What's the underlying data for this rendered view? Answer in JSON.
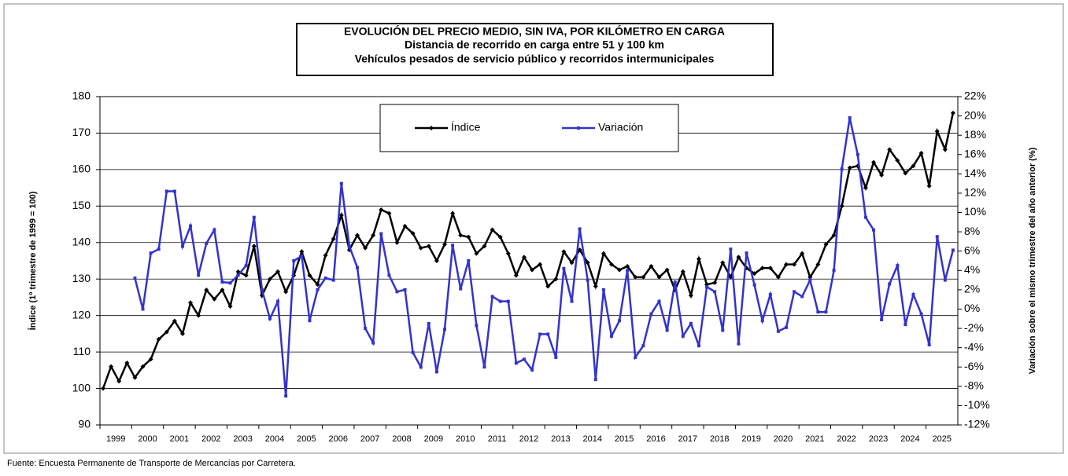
{
  "chart_data": {
    "type": "line",
    "title": "EVOLUCIÓN DEL PRECIO MEDIO, SIN IVA,  POR KILÓMETRO EN CARGA",
    "subtitle": [
      "Distancia de recorrido en carga entre 51 y 100 km",
      "Vehículos pesados de servicio público y recorridos intermunicipales"
    ],
    "ylabel": "Índice (1º trimestre de 1999 = 100)",
    "y2label": "Variación sobre el mismo trimestre del año anterior (%)",
    "source": "Fuente: Encuesta Permanente de Transporte de Mercancías por Carretera.",
    "categories": [
      "1999",
      null,
      null,
      null,
      "2000",
      null,
      null,
      null,
      "2001",
      null,
      null,
      null,
      "2002",
      null,
      null,
      null,
      "2003",
      null,
      null,
      null,
      "2004",
      null,
      null,
      null,
      "2005",
      null,
      null,
      null,
      "2006",
      null,
      null,
      null,
      "2007",
      null,
      null,
      null,
      "2008",
      null,
      null,
      null,
      "2009",
      null,
      null,
      null,
      "2010",
      null,
      null,
      null,
      "2011",
      null,
      null,
      null,
      "2012",
      null,
      null,
      null,
      "2013",
      null,
      null,
      null,
      "2014",
      null,
      null,
      null,
      "2015",
      null,
      null,
      null,
      "2016",
      null,
      null,
      null,
      "2017",
      null,
      null,
      null,
      "2018",
      null,
      null,
      null,
      "2019",
      null,
      null,
      null,
      "2020",
      null,
      null,
      null,
      "2021",
      null,
      null,
      null,
      "2022",
      null,
      null,
      null,
      "2023",
      null,
      null,
      null,
      "2024",
      null,
      null,
      null,
      "2025",
      null,
      null,
      null
    ],
    "series": [
      {
        "name": "Índice",
        "color": "#000000",
        "axis": "y",
        "values": [
          100,
          106,
          102,
          107,
          103,
          106,
          108,
          113.5,
          115.5,
          118.5,
          115,
          123.5,
          120,
          127,
          124.5,
          127,
          122.5,
          132,
          131,
          139,
          125.5,
          130,
          132,
          126.5,
          131,
          137.5,
          131,
          128.5,
          136.5,
          141,
          147.5,
          138,
          142,
          138.5,
          142,
          149,
          148,
          140,
          144.5,
          142.5,
          138.5,
          139,
          135,
          139.5,
          148,
          142,
          141.5,
          137,
          139,
          143.5,
          141.5,
          137,
          131,
          136,
          132.5,
          134,
          128,
          130,
          137.5,
          134.5,
          138,
          134.5,
          128,
          137,
          134,
          132.5,
          133.5,
          130.5,
          130.5,
          133.5,
          130.5,
          132.5,
          127,
          132,
          125.5,
          135.5,
          128.5,
          129,
          134.5,
          130.5,
          136,
          133,
          131.5,
          133,
          133,
          130.5,
          134,
          134,
          137,
          130.5,
          134,
          139.5,
          142,
          150,
          160.5,
          161,
          155,
          162,
          158.5,
          165.5,
          162.5,
          159,
          161,
          164.5,
          155.5,
          170.5,
          165.5,
          175.5
        ]
      },
      {
        "name": "Variación",
        "color": "#3333cc",
        "axis": "y2",
        "values": [
          null,
          null,
          null,
          null,
          3.2,
          0,
          5.8,
          6.2,
          12.2,
          12.2,
          6.5,
          8.6,
          3.5,
          6.8,
          8.2,
          2.8,
          2.7,
          3.5,
          4.5,
          9.5,
          2,
          -1,
          0.8,
          -9,
          5,
          5.5,
          -1.2,
          2,
          3.2,
          3,
          13,
          6.5,
          4.3,
          -2,
          -3.5,
          7.8,
          3.5,
          1.8,
          2,
          -4.5,
          -6,
          -1.5,
          -6.5,
          -2.1,
          6.6,
          2.1,
          5,
          -1.7,
          -6,
          1.3,
          0.8,
          0.8,
          -5.6,
          -5.2,
          -6.3,
          -2.6,
          -2.6,
          -5,
          4.2,
          0.8,
          8.3,
          3,
          -7.3,
          2,
          -2.8,
          -1.2,
          4,
          -5,
          -3.8,
          -0.5,
          0.8,
          -2.2,
          2.8,
          -2.8,
          -1.5,
          -3.8,
          2.3,
          1.8,
          -2.2,
          6.2,
          -3.6,
          5.8,
          2.5,
          -1.2,
          1.5,
          -2.3,
          -1.9,
          1.8,
          1.3,
          3,
          -0.3,
          -0.3,
          4,
          14.5,
          19.8,
          16,
          9.5,
          8.2,
          -1.1,
          2.6,
          4.5,
          -1.6,
          1.5,
          -0.5,
          -3.7,
          7.5,
          3,
          6.1
        ]
      }
    ],
    "ylim": [
      90,
      180
    ],
    "yticks": [
      90,
      100,
      110,
      120,
      130,
      140,
      150,
      160,
      170,
      180
    ],
    "y2lim": [
      -12,
      22
    ],
    "y2ticks": [
      {
        "value": -12,
        "label": "-12%"
      },
      {
        "value": -10,
        "label": "-10%"
      },
      {
        "value": -8,
        "label": "-8%"
      },
      {
        "value": -6,
        "label": "-6%"
      },
      {
        "value": -4,
        "label": "-4%"
      },
      {
        "value": -2,
        "label": "-2%"
      },
      {
        "value": 0,
        "label": "0%"
      },
      {
        "value": 2,
        "label": "2%"
      },
      {
        "value": 4,
        "label": "4%"
      },
      {
        "value": 6,
        "label": "6%"
      },
      {
        "value": 8,
        "label": "8%"
      },
      {
        "value": 10,
        "label": "10%"
      },
      {
        "value": 12,
        "label": "12%"
      },
      {
        "value": 14,
        "label": "14%"
      },
      {
        "value": 16,
        "label": "16%"
      },
      {
        "value": 18,
        "label": "18%"
      },
      {
        "value": 20,
        "label": "20%"
      },
      {
        "value": 22,
        "label": "22%"
      }
    ],
    "grid": true
  }
}
